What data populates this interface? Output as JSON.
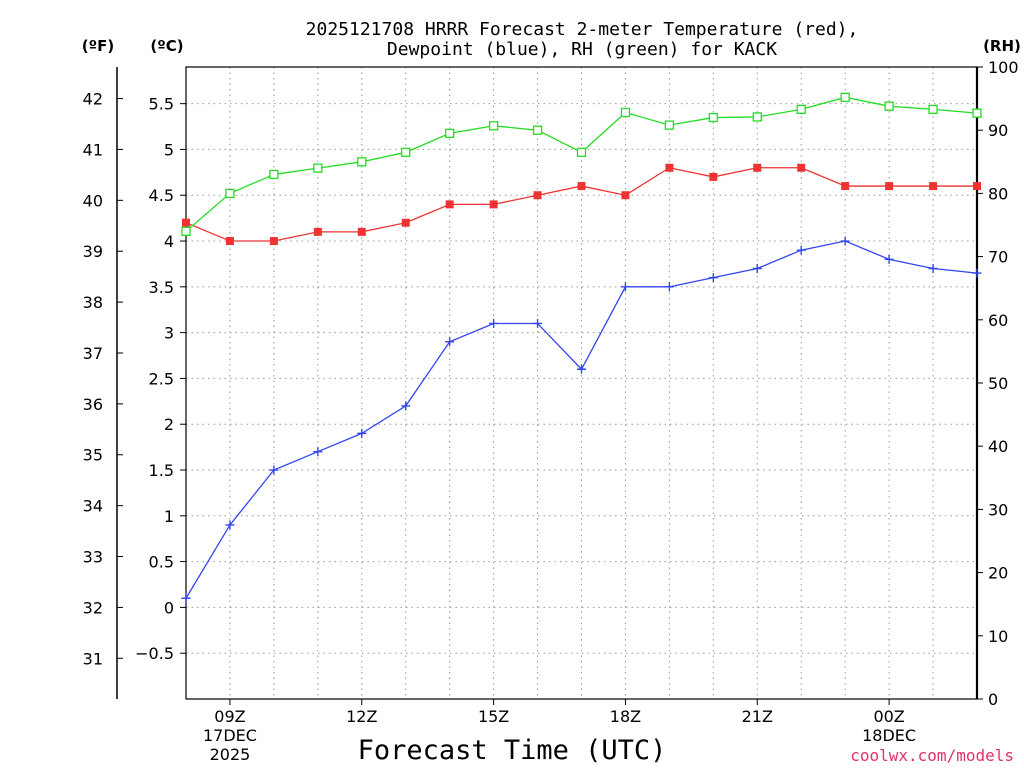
{
  "chart_data": {
    "type": "line",
    "title_lines": [
      "2025121708 HRRR Forecast 2-meter Temperature (red),",
      "Dewpoint (blue), RH (green) for KACK"
    ],
    "xlabel": "Forecast Time (UTC)",
    "credit": "coolwx.com/models",
    "units": {
      "left_f": "(ºF)",
      "left_c": "(ºC)",
      "right_rh": "(RH)"
    },
    "x_hours": [
      8,
      9,
      10,
      11,
      12,
      13,
      14,
      15,
      16,
      17,
      18,
      19,
      20,
      21,
      22,
      23,
      24,
      25,
      26
    ],
    "x_range": [
      8,
      26
    ],
    "x_ticks": [
      {
        "hour": 9,
        "lines": [
          "09Z",
          "17DEC",
          "2025"
        ]
      },
      {
        "hour": 12,
        "lines": [
          "12Z"
        ]
      },
      {
        "hour": 15,
        "lines": [
          "15Z"
        ]
      },
      {
        "hour": 18,
        "lines": [
          "18Z"
        ]
      },
      {
        "hour": 21,
        "lines": [
          "21Z"
        ]
      },
      {
        "hour": 24,
        "lines": [
          "00Z",
          "18DEC"
        ]
      }
    ],
    "y_celsius": {
      "range": [
        -1.0,
        5.9
      ],
      "ticks": [
        -0.5,
        0,
        0.5,
        1,
        1.5,
        2,
        2.5,
        3,
        3.5,
        4,
        4.5,
        5,
        5.5
      ],
      "tick_labels": [
        "−0.5",
        "0",
        "0.5",
        "1",
        "1.5",
        "2",
        "2.5",
        "3",
        "3.5",
        "4",
        "4.5",
        "5",
        "5.5"
      ]
    },
    "y_fahrenheit": {
      "ticks": [
        31,
        32,
        33,
        34,
        35,
        36,
        37,
        38,
        39,
        40,
        41,
        42
      ],
      "tick_labels": [
        "31",
        "32",
        "33",
        "34",
        "35",
        "36",
        "37",
        "38",
        "39",
        "40",
        "41",
        "42"
      ]
    },
    "y_rh": {
      "range": [
        0,
        100
      ],
      "ticks": [
        0,
        10,
        20,
        30,
        40,
        50,
        60,
        70,
        80,
        90,
        100
      ],
      "tick_labels": [
        "0",
        "10",
        "20",
        "30",
        "40",
        "50",
        "60",
        "70",
        "80",
        "90",
        "100"
      ]
    },
    "series": [
      {
        "name": "Temperature",
        "axis": "celsius",
        "color": "#ee3333",
        "marker": "filled-square",
        "values": [
          4.2,
          4.0,
          4.0,
          4.1,
          4.1,
          4.2,
          4.4,
          4.4,
          4.5,
          4.6,
          4.5,
          4.8,
          4.7,
          4.8,
          4.8,
          4.6,
          4.6,
          4.6,
          4.6
        ]
      },
      {
        "name": "Dewpoint",
        "axis": "celsius",
        "color": "#3344ee",
        "marker": "plus",
        "values": [
          0.1,
          0.9,
          1.5,
          1.7,
          1.9,
          2.2,
          2.9,
          3.1,
          3.1,
          2.6,
          3.5,
          3.5,
          3.6,
          3.7,
          3.9,
          4.0,
          3.8,
          3.7,
          3.65
        ]
      },
      {
        "name": "RH",
        "axis": "rh",
        "color": "#22dd22",
        "marker": "open-square",
        "values": [
          74,
          80,
          83,
          84,
          85,
          86.5,
          89.5,
          90.7,
          90,
          86.5,
          92.8,
          90.8,
          92,
          92.1,
          93.3,
          95.2,
          93.8,
          93.3,
          92.7
        ]
      }
    ],
    "grid": true
  }
}
